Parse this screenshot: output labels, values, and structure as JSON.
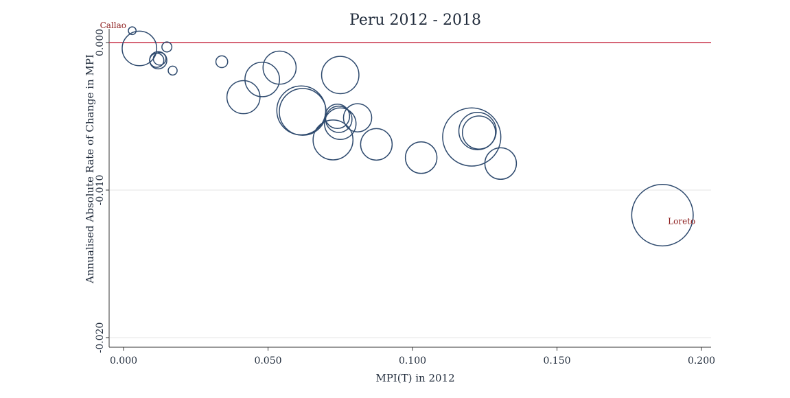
{
  "chart_data": {
    "type": "scatter",
    "title": "Peru 2012 - 2018",
    "xlabel": "MPI(T) in 2012",
    "ylabel": "Annualised Absolute Rate of Change in MPI",
    "xlim": [
      0,
      0.2
    ],
    "ylim": [
      -0.02,
      0.0
    ],
    "x_ticks": [
      0.0,
      0.05,
      0.1,
      0.15,
      0.2
    ],
    "x_tick_labels": [
      "0.000",
      "0.050",
      "0.100",
      "0.150",
      "0.200"
    ],
    "y_ticks": [
      0.0,
      -0.01,
      -0.02
    ],
    "y_tick_labels": [
      "0.000",
      "-0.010",
      "-0.020"
    ],
    "grid": "horizontal",
    "bubble_size_encoded": true,
    "reference_line": {
      "y": 0.0,
      "color": "#c8334a"
    },
    "series_color": "#2e4a6e",
    "points": [
      {
        "x": 0.003,
        "y": 0.0008,
        "size": 0.03,
        "label": "Callao"
      },
      {
        "x": 0.0055,
        "y": -0.0004,
        "size": 0.6
      },
      {
        "x": 0.015,
        "y": -0.0003,
        "size": 0.05
      },
      {
        "x": 0.0115,
        "y": -0.0012,
        "size": 0.1
      },
      {
        "x": 0.012,
        "y": -0.0012,
        "size": 0.15
      },
      {
        "x": 0.0125,
        "y": -0.0011,
        "size": 0.08
      },
      {
        "x": 0.017,
        "y": -0.0019,
        "size": 0.04
      },
      {
        "x": 0.034,
        "y": -0.0013,
        "size": 0.07
      },
      {
        "x": 0.0415,
        "y": -0.0037,
        "size": 0.55
      },
      {
        "x": 0.048,
        "y": -0.0025,
        "size": 0.6
      },
      {
        "x": 0.054,
        "y": -0.0017,
        "size": 0.55
      },
      {
        "x": 0.0615,
        "y": -0.0046,
        "size": 1.2
      },
      {
        "x": 0.062,
        "y": -0.0047,
        "size": 1.1
      },
      {
        "x": 0.075,
        "y": -0.0022,
        "size": 0.7
      },
      {
        "x": 0.0725,
        "y": -0.0066,
        "size": 0.8
      },
      {
        "x": 0.074,
        "y": -0.005,
        "size": 0.3
      },
      {
        "x": 0.0745,
        "y": -0.0052,
        "size": 0.35
      },
      {
        "x": 0.075,
        "y": -0.0055,
        "size": 0.5
      },
      {
        "x": 0.081,
        "y": -0.0051,
        "size": 0.4
      },
      {
        "x": 0.0875,
        "y": -0.0069,
        "size": 0.5
      },
      {
        "x": 0.103,
        "y": -0.0078,
        "size": 0.5
      },
      {
        "x": 0.1205,
        "y": -0.0064,
        "size": 1.7
      },
      {
        "x": 0.1225,
        "y": -0.006,
        "size": 0.7
      },
      {
        "x": 0.123,
        "y": -0.0061,
        "size": 0.55
      },
      {
        "x": 0.1305,
        "y": -0.0082,
        "size": 0.5
      },
      {
        "x": 0.1865,
        "y": -0.0117,
        "size": 1.9,
        "label": "Loreto"
      }
    ]
  }
}
